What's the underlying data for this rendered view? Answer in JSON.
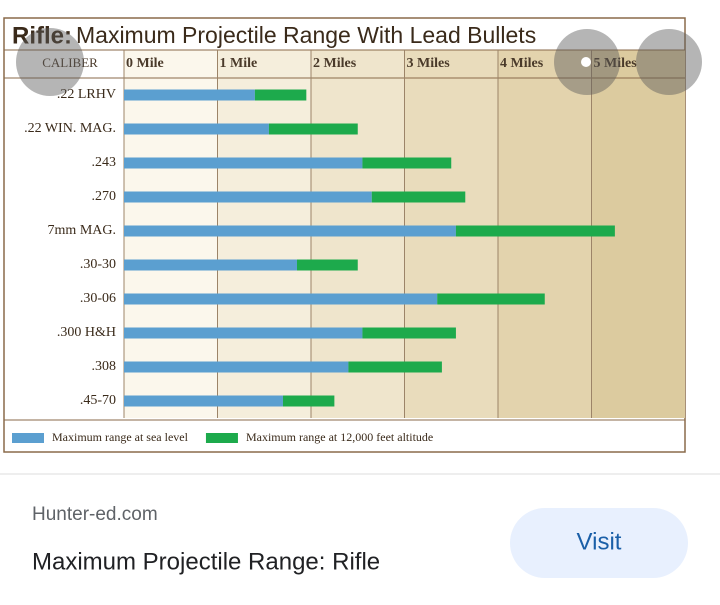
{
  "chart_data": {
    "type": "bar",
    "stacked": true,
    "orientation": "horizontal",
    "title_prefix": "Rifle:",
    "title": "Maximum Projectile Range With Lead Bullets",
    "category_header": "CALIBER",
    "categories": [
      ".22 LRHV",
      ".22 WIN. MAG.",
      ".243",
      ".270",
      "7mm MAG.",
      ".30-30",
      ".30-06",
      ".300 H&H",
      ".308",
      ".45-70"
    ],
    "series": [
      {
        "name": "Maximum range at sea level",
        "color": "#5b9fd0",
        "values": [
          1.4,
          1.55,
          2.55,
          2.65,
          3.55,
          1.85,
          3.35,
          2.55,
          2.4,
          1.7
        ]
      },
      {
        "name": "Maximum range at 12,000 feet altitude",
        "color": "#1daa4c",
        "values": [
          0.55,
          0.95,
          0.95,
          1.0,
          1.7,
          0.65,
          1.15,
          1.0,
          1.0,
          0.55
        ]
      }
    ],
    "xlim": [
      0,
      6
    ],
    "xticks": [
      {
        "value": 0,
        "label": "0 Mile"
      },
      {
        "value": 1,
        "label": "1 Mile"
      },
      {
        "value": 2,
        "label": "2 Miles"
      },
      {
        "value": 3,
        "label": "3 Miles"
      },
      {
        "value": 4,
        "label": "4 Miles"
      },
      {
        "value": 5,
        "label": "5 Miles"
      }
    ],
    "grid": true
  },
  "result": {
    "source": "Hunter-ed.com",
    "caption": "Maximum Projectile Range: Rifle",
    "button": "Visit"
  }
}
